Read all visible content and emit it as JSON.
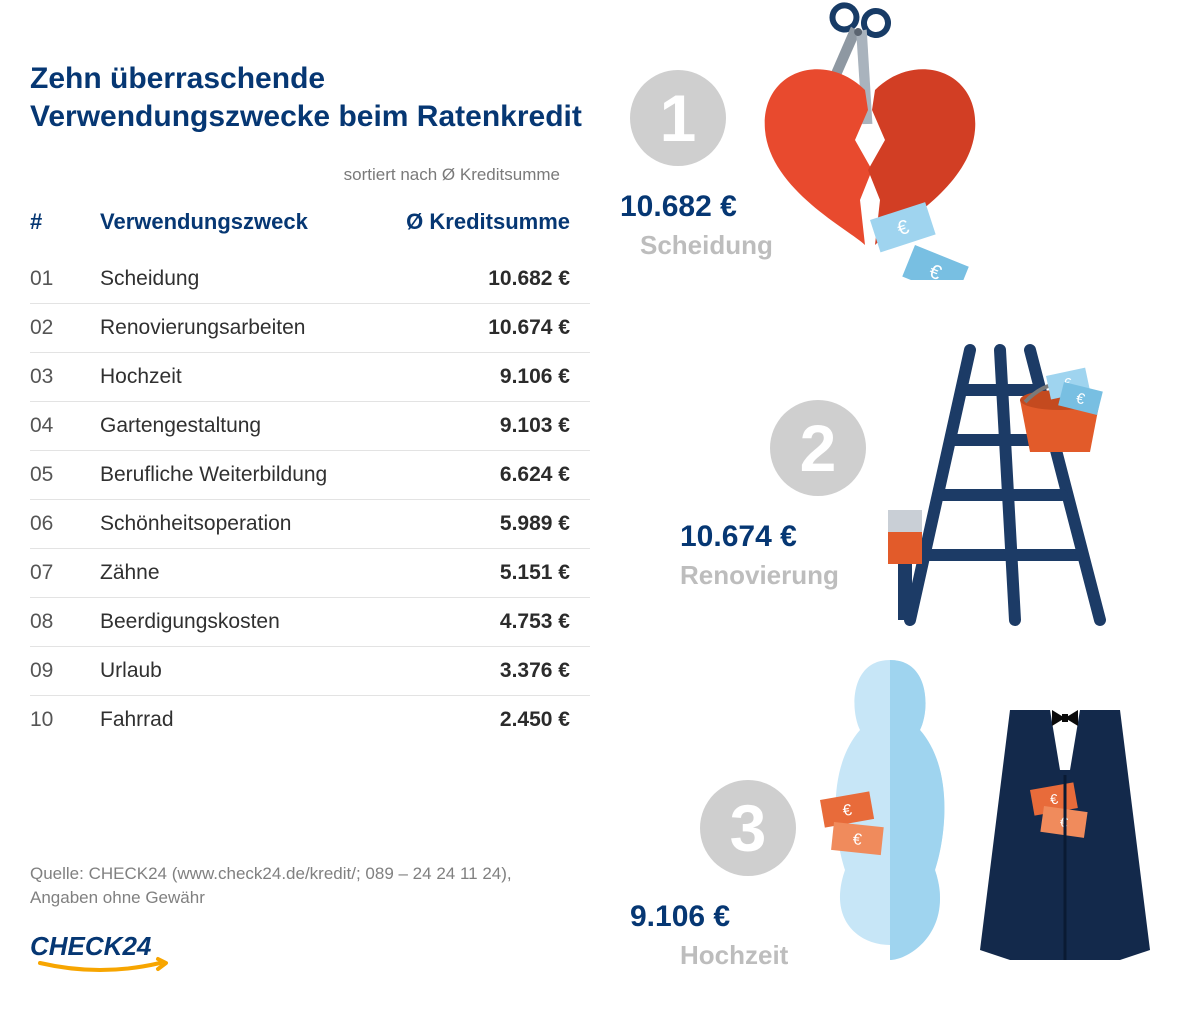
{
  "colors": {
    "primary_blue": "#063773",
    "text_dark": "#303030",
    "text_gray": "#7a7a7a",
    "light_gray": "#bdbdbd",
    "circle_gray": "#cfcfcf",
    "row_border": "#e3e3e3",
    "heart_red": "#e84a2e",
    "bucket_orange": "#e25b2a",
    "money_blue": "#9fd4ef",
    "ladder_navy": "#1c3b66",
    "suit_navy": "#13294b",
    "bride_light": "#c7e6f7",
    "bride_mid": "#9fd4ef",
    "background": "#ffffff"
  },
  "title": "Zehn überraschende Verwendungszwecke beim Ratenkredit",
  "sort_note": "sortiert nach Ø Kreditsumme",
  "table": {
    "headers": {
      "rank": "#",
      "purpose": "Verwendungszweck",
      "amount": "Ø Kreditsumme"
    },
    "rows": [
      {
        "rank": "01",
        "purpose": "Scheidung",
        "amount": "10.682 €"
      },
      {
        "rank": "02",
        "purpose": "Renovierungsarbeiten",
        "amount": "10.674 €"
      },
      {
        "rank": "03",
        "purpose": "Hochzeit",
        "amount": "9.106 €"
      },
      {
        "rank": "04",
        "purpose": "Gartengestaltung",
        "amount": "9.103 €"
      },
      {
        "rank": "05",
        "purpose": "Berufliche Weiterbildung",
        "amount": "6.624 €"
      },
      {
        "rank": "06",
        "purpose": "Schönheitsoperation",
        "amount": "5.989 €"
      },
      {
        "rank": "07",
        "purpose": "Zähne",
        "amount": "5.151 €"
      },
      {
        "rank": "08",
        "purpose": "Beerdigungskosten",
        "amount": "4.753 €"
      },
      {
        "rank": "09",
        "purpose": "Urlaub",
        "amount": "3.376 €"
      },
      {
        "rank": "10",
        "purpose": "Fahrrad",
        "amount": "2.450 €"
      }
    ]
  },
  "source_line1": "Quelle: CHECK24 (www.check24.de/kredit/; 089 – 24 24 11 24),",
  "source_line2": "Angaben ohne Gewähr",
  "logo_text": "CHECK24",
  "features": [
    {
      "rank": "1",
      "amount": "10.682 €",
      "label": "Scheidung",
      "icon": "heart"
    },
    {
      "rank": "2",
      "amount": "10.674 €",
      "label": "Renovierung",
      "icon": "ladder"
    },
    {
      "rank": "3",
      "amount": "9.106 €",
      "label": "Hochzeit",
      "icon": "wedding"
    }
  ]
}
